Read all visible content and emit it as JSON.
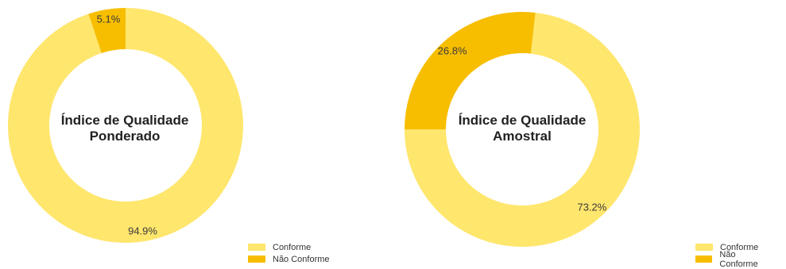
{
  "chart_data": [
    {
      "type": "pie",
      "title": "Índice de Qualidade Ponderado",
      "title_lines": [
        "Índice de Qualidade",
        "Ponderado"
      ],
      "categories": [
        "Conforme",
        "Não Conforme"
      ],
      "values": [
        94.9,
        5.1
      ],
      "labels": [
        "94.9%",
        "5.1%"
      ],
      "colors": [
        "#FFE66D",
        "#F7BE00"
      ],
      "legend": "bottom-right"
    },
    {
      "type": "pie",
      "title": "Índice de Qualidade Amostral",
      "title_lines": [
        "Índice de Qualidade",
        "Amostral"
      ],
      "categories": [
        "Conforme",
        "Não Conforme"
      ],
      "values": [
        73.2,
        26.8
      ],
      "labels": [
        "73.2%",
        "26.8%"
      ],
      "colors": [
        "#FFE66D",
        "#F7BE00"
      ],
      "legend": "bottom-right"
    }
  ]
}
